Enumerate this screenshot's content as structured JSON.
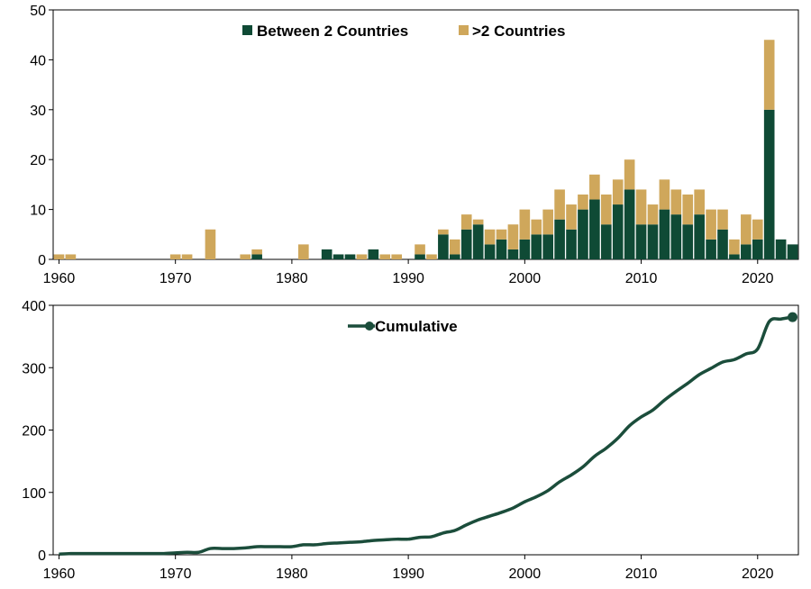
{
  "colors": {
    "two": "#0f4a35",
    "multi": "#cfa75b",
    "line": "#1b4d3b",
    "axis": "#000000"
  },
  "chart_data": [
    {
      "type": "bar",
      "stacked": true,
      "title": "",
      "xlabel": "",
      "ylabel": "",
      "ylim": [
        0,
        50
      ],
      "yticks": [
        0,
        10,
        20,
        30,
        40,
        50
      ],
      "xticks": [
        1960,
        1970,
        1980,
        1990,
        2000,
        2010,
        2020
      ],
      "xlim": [
        1959.5,
        2023.5
      ],
      "legend_position": "top-center",
      "grid": false,
      "x": [
        1960,
        1961,
        1962,
        1963,
        1964,
        1965,
        1966,
        1967,
        1968,
        1969,
        1970,
        1971,
        1972,
        1973,
        1974,
        1975,
        1976,
        1977,
        1978,
        1979,
        1980,
        1981,
        1982,
        1983,
        1984,
        1985,
        1986,
        1987,
        1988,
        1989,
        1990,
        1991,
        1992,
        1993,
        1994,
        1995,
        1996,
        1997,
        1998,
        1999,
        2000,
        2001,
        2002,
        2003,
        2004,
        2005,
        2006,
        2007,
        2008,
        2009,
        2010,
        2011,
        2012,
        2013,
        2014,
        2015,
        2016,
        2017,
        2018,
        2019,
        2020,
        2021,
        2022,
        2023
      ],
      "series": [
        {
          "name": "Between 2 Countries",
          "color_key": "two",
          "values": [
            0,
            0,
            0,
            0,
            0,
            0,
            0,
            0,
            0,
            0,
            0,
            0,
            0,
            0,
            0,
            0,
            0,
            1,
            0,
            0,
            0,
            0,
            0,
            2,
            1,
            1,
            0,
            2,
            0,
            0,
            0,
            1,
            0,
            5,
            1,
            6,
            7,
            3,
            4,
            2,
            4,
            5,
            5,
            8,
            6,
            10,
            12,
            7,
            11,
            14,
            7,
            7,
            10,
            9,
            7,
            9,
            4,
            6,
            1,
            3,
            4,
            30,
            4,
            3
          ]
        },
        {
          "name": ">2 Countries",
          "color_key": "multi",
          "values": [
            1,
            1,
            0,
            0,
            0,
            0,
            0,
            0,
            0,
            0,
            1,
            1,
            0,
            6,
            0,
            0,
            1,
            1,
            0,
            0,
            0,
            3,
            0,
            0,
            0,
            0,
            1,
            0,
            1,
            1,
            0,
            2,
            1,
            1,
            3,
            3,
            1,
            3,
            2,
            5,
            6,
            3,
            5,
            6,
            5,
            3,
            5,
            6,
            5,
            6,
            7,
            4,
            6,
            5,
            6,
            5,
            6,
            4,
            3,
            6,
            4,
            14,
            0,
            0
          ]
        }
      ]
    },
    {
      "type": "line",
      "title": "",
      "xlabel": "",
      "ylabel": "",
      "ylim": [
        0,
        400
      ],
      "yticks": [
        0,
        100,
        200,
        300,
        400
      ],
      "xticks": [
        1960,
        1970,
        1980,
        1990,
        2000,
        2010,
        2020
      ],
      "xlim": [
        1959.5,
        2023.5
      ],
      "legend_position": "top-center",
      "grid": false,
      "series": [
        {
          "name": "Cumulative",
          "color_key": "line",
          "x": [
            1960,
            1961,
            1962,
            1963,
            1964,
            1965,
            1966,
            1967,
            1968,
            1969,
            1970,
            1971,
            1972,
            1973,
            1974,
            1975,
            1976,
            1977,
            1978,
            1979,
            1980,
            1981,
            1982,
            1983,
            1984,
            1985,
            1986,
            1987,
            1988,
            1989,
            1990,
            1991,
            1992,
            1993,
            1994,
            1995,
            1996,
            1997,
            1998,
            1999,
            2000,
            2001,
            2002,
            2003,
            2004,
            2005,
            2006,
            2007,
            2008,
            2009,
            2010,
            2011,
            2012,
            2013,
            2014,
            2015,
            2016,
            2017,
            2018,
            2019,
            2020,
            2021,
            2022,
            2023
          ],
          "values": [
            1,
            2,
            2,
            2,
            2,
            2,
            2,
            2,
            2,
            2,
            3,
            4,
            4,
            10,
            10,
            10,
            11,
            13,
            13,
            13,
            13,
            16,
            16,
            18,
            19,
            20,
            21,
            23,
            24,
            25,
            25,
            28,
            29,
            35,
            39,
            48,
            56,
            62,
            68,
            75,
            85,
            93,
            103,
            117,
            128,
            141,
            158,
            171,
            187,
            207,
            221,
            232,
            248,
            262,
            275,
            289,
            299,
            309,
            313,
            322,
            330,
            374,
            378,
            381
          ]
        }
      ]
    }
  ]
}
